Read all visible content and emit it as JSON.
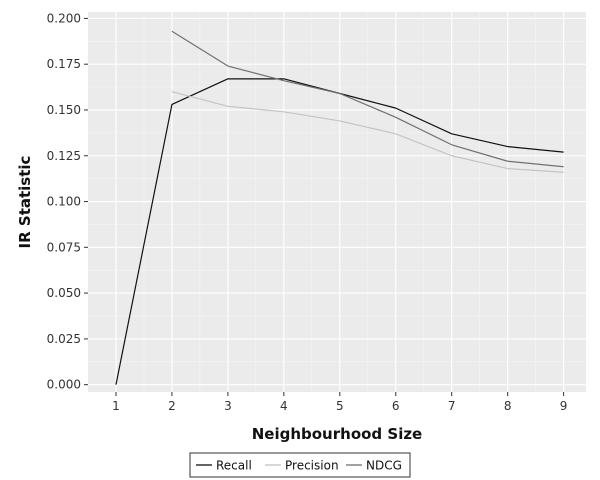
{
  "chart_data": {
    "type": "line",
    "xlabel": "Neighbourhood Size",
    "ylabel": "IR Statistic",
    "x": [
      1,
      2,
      3,
      4,
      5,
      6,
      7,
      8,
      9
    ],
    "xlim": [
      0.5,
      9.4
    ],
    "ylim": [
      -0.004,
      0.2035
    ],
    "yticks": [
      0.0,
      0.025,
      0.05,
      0.075,
      0.1,
      0.125,
      0.15,
      0.175,
      0.2
    ],
    "ytick_labels": [
      "0.000",
      "0.025",
      "0.050",
      "0.075",
      "0.100",
      "0.125",
      "0.150",
      "0.175",
      "0.200"
    ],
    "xtick_labels": [
      "1",
      "2",
      "3",
      "4",
      "5",
      "6",
      "7",
      "8",
      "9"
    ],
    "grid": true,
    "legend_position": "bottom",
    "series": [
      {
        "name": "Recall",
        "color": "#111111",
        "x": [
          1,
          2,
          3,
          4,
          5,
          6,
          7,
          8,
          9
        ],
        "values": [
          0.0,
          0.153,
          0.167,
          0.167,
          0.159,
          0.151,
          0.137,
          0.13,
          0.127
        ]
      },
      {
        "name": "Precision",
        "color": "#c4c4c4",
        "x": [
          2,
          3,
          4,
          5,
          6,
          7,
          8,
          9
        ],
        "values": [
          0.16,
          0.152,
          0.149,
          0.144,
          0.137,
          0.125,
          0.118,
          0.116
        ]
      },
      {
        "name": "NDCG",
        "color": "#707070",
        "x": [
          2,
          3,
          4,
          5,
          6,
          7,
          8,
          9
        ],
        "values": [
          0.193,
          0.174,
          0.166,
          0.159,
          0.146,
          0.131,
          0.122,
          0.119
        ]
      }
    ]
  }
}
